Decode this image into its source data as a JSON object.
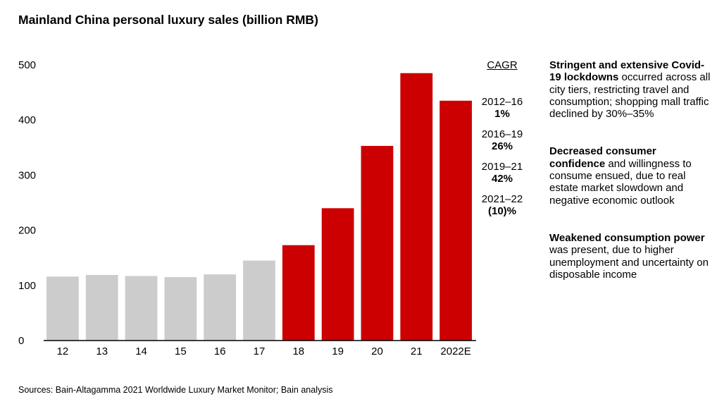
{
  "title": "Mainland China personal luxury sales (billion RMB)",
  "chart_data": {
    "type": "bar",
    "title": "Mainland China personal luxury sales (billion RMB)",
    "xlabel": "",
    "ylabel": "",
    "ylim": [
      0,
      500
    ],
    "yticks": [
      0,
      100,
      200,
      300,
      400,
      500
    ],
    "grid": false,
    "categories": [
      "12",
      "13",
      "14",
      "15",
      "16",
      "17",
      "18",
      "19",
      "20",
      "21",
      "2022E"
    ],
    "values": [
      116,
      119,
      117,
      115,
      120,
      145,
      173,
      240,
      353,
      485,
      435
    ],
    "colors": {
      "historical": "#cccccc",
      "highlight": "#cc0000",
      "axis": "#000000"
    },
    "highlight_from_index": 6
  },
  "cagr": {
    "header": "CAGR",
    "items": [
      {
        "period": "2012–16",
        "value": "1%"
      },
      {
        "period": "2016–19",
        "value": "26%"
      },
      {
        "period": "2019–21",
        "value": "42%"
      },
      {
        "period": "2021–22",
        "value": "(10)%"
      }
    ]
  },
  "notes": [
    {
      "bold": "Stringent and extensive Covid-19 lockdowns",
      "text": " occurred across all city tiers, restricting travel and consumption; shopping mall traffic declined by 30%–35%"
    },
    {
      "bold": "Decreased consumer confidence",
      "text": " and willingness to consume ensued, due to real estate market slowdown and negative economic outlook"
    },
    {
      "bold": "Weakened consumption power",
      "text": " was present, due to higher unemployment and uncertainty on disposable income"
    }
  ],
  "source": "Sources: Bain-Altagamma 2021 Worldwide Luxury Market Monitor; Bain analysis"
}
